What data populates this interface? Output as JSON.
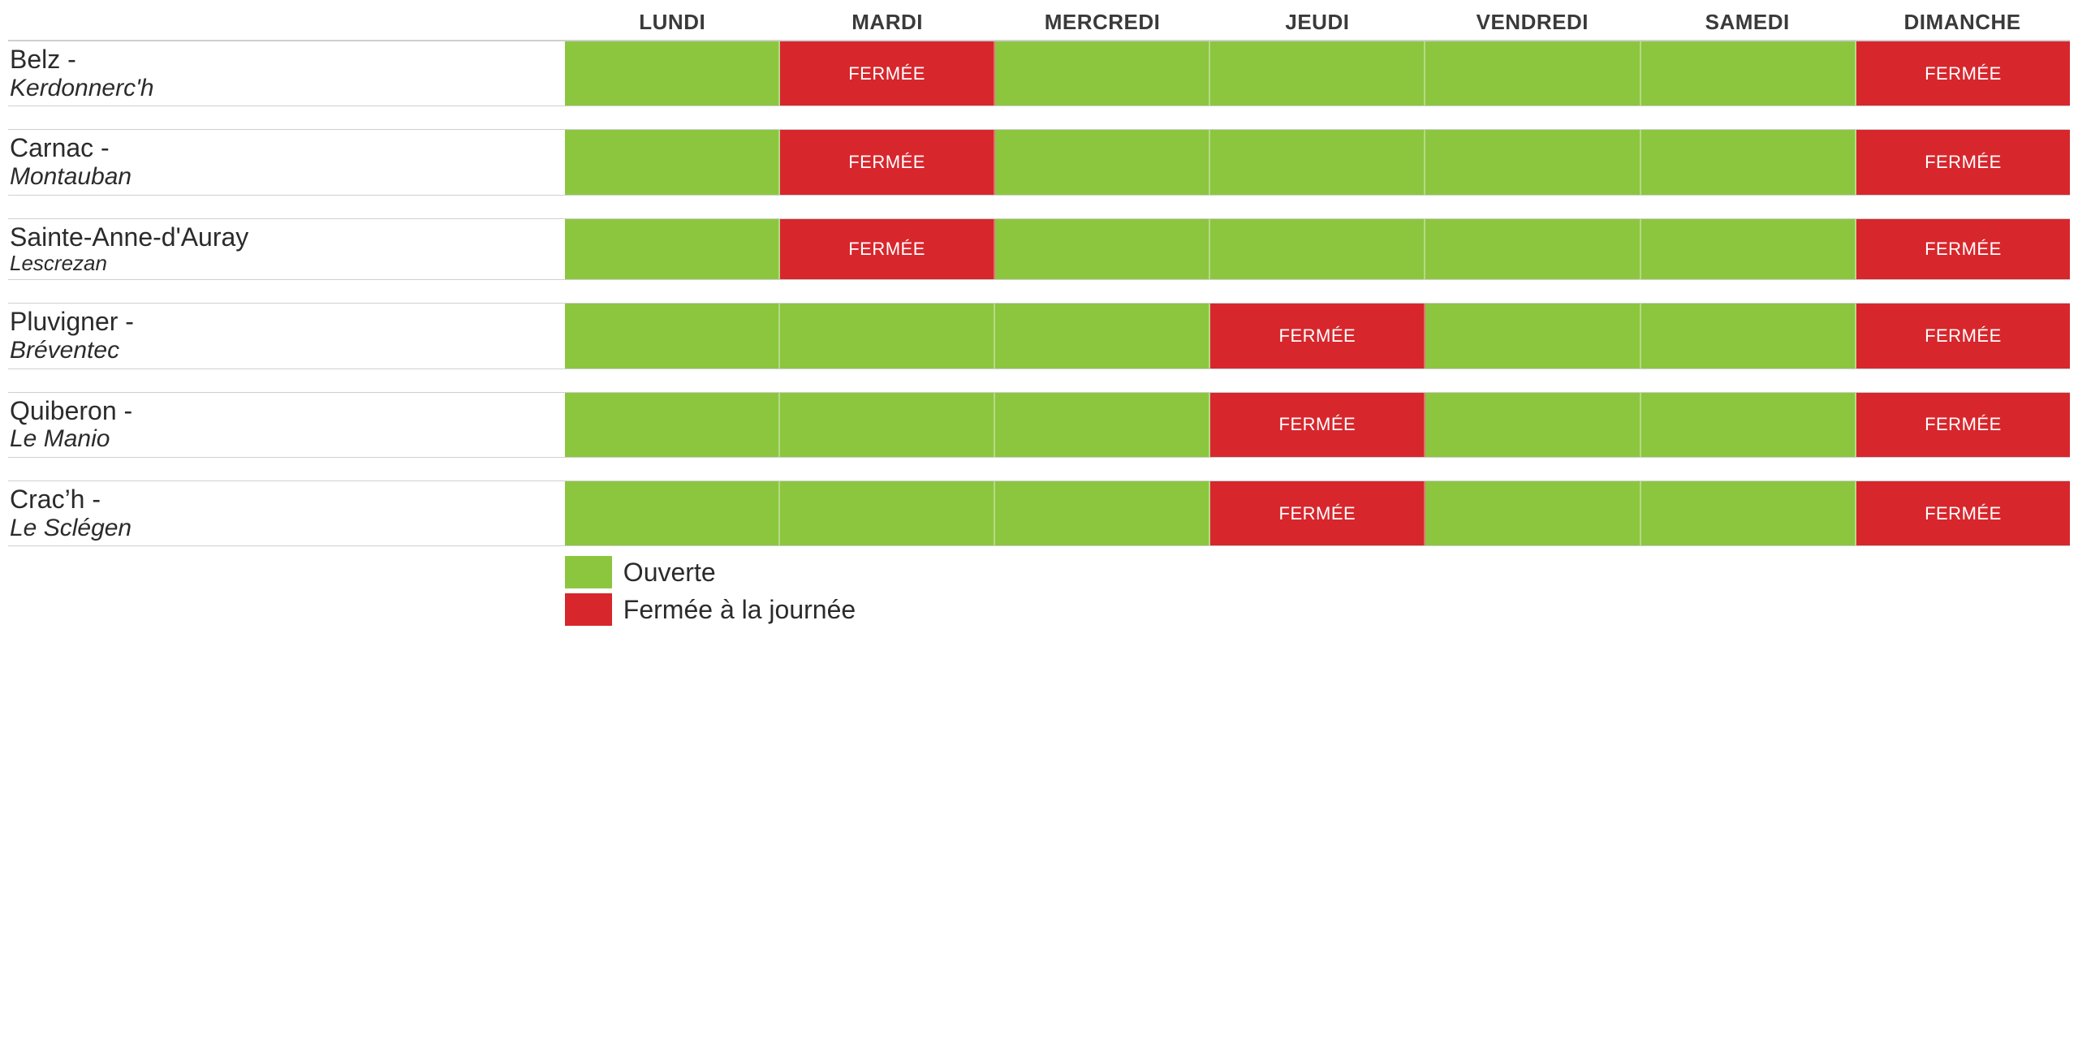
{
  "colors": {
    "open": "#8cc63f",
    "closed": "#d7262c",
    "text": "#2b2b2b",
    "border": "#cfcfcf",
    "closed_text": "#ffffff"
  },
  "closed_label": "FERMÉE",
  "days": [
    "LUNDI",
    "MARDI",
    "MERCREDI",
    "JEUDI",
    "VENDREDI",
    "SAMEDI",
    "DIMANCHE"
  ],
  "rows": [
    {
      "city": "Belz",
      "site": "Kerdonnerc'h",
      "closed_days": [
        1,
        6
      ]
    },
    {
      "city": "Carnac",
      "site": "Montauban",
      "closed_days": [
        1,
        6
      ]
    },
    {
      "city": "Sainte-Anne-d'Auray",
      "site": "Lescrezan",
      "site_below": true,
      "closed_days": [
        1,
        6
      ]
    },
    {
      "city": "Pluvigner",
      "site": "Bréventec",
      "closed_days": [
        3,
        6
      ]
    },
    {
      "city": "Quiberon",
      "site": "Le Manio",
      "closed_days": [
        3,
        6
      ]
    },
    {
      "city": "Crac’h",
      "site": "Le Sclégen",
      "closed_days": [
        3,
        6
      ]
    }
  ],
  "legend": {
    "open": "Ouverte",
    "closed": "Fermée à la journée"
  }
}
